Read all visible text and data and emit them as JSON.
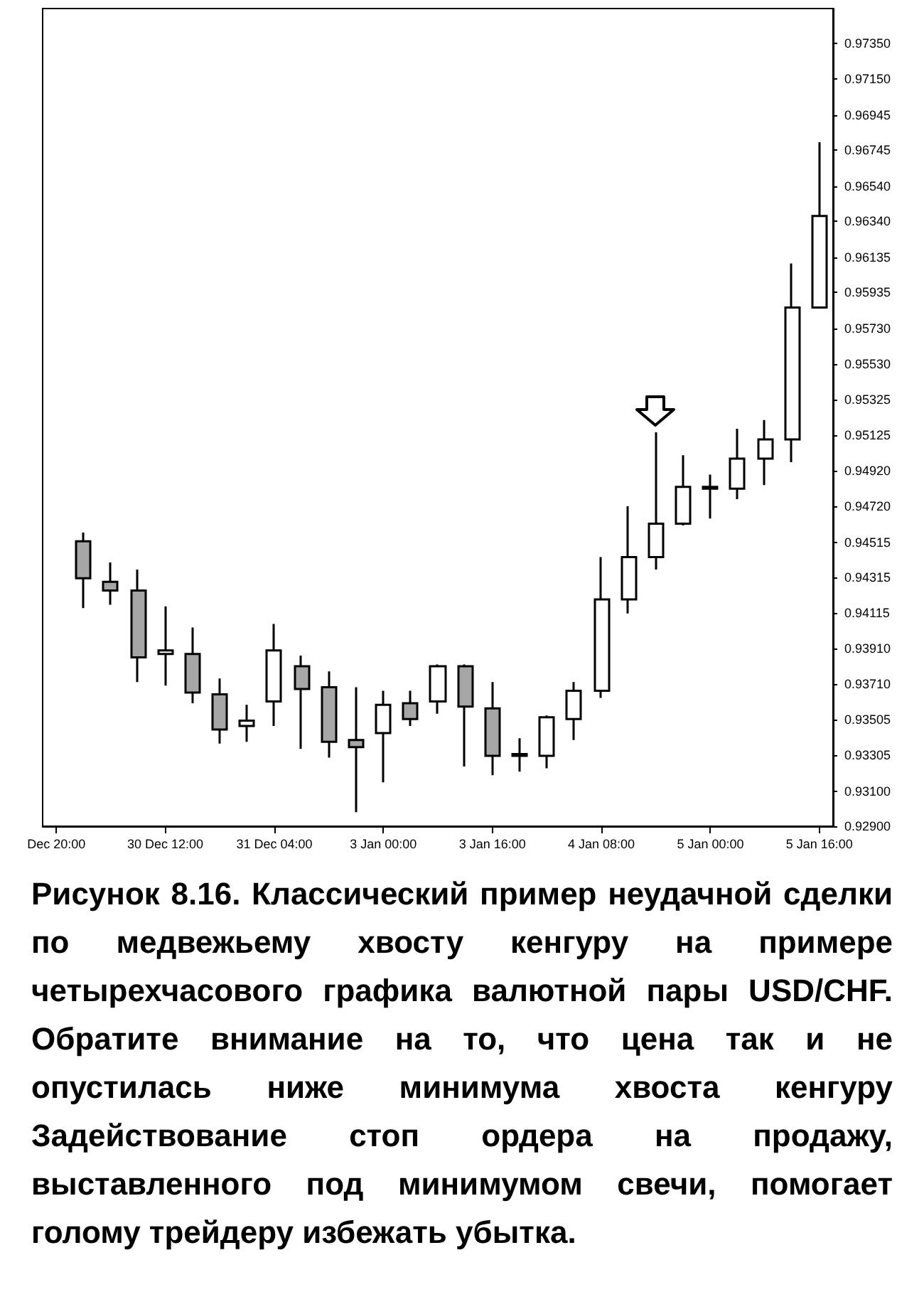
{
  "chart_data": {
    "type": "candlestick",
    "categories": [
      "Dec 20:00",
      null,
      null,
      null,
      "30 Dec 12:00",
      null,
      null,
      null,
      "31 Dec 04:00",
      null,
      null,
      null,
      "3 Jan 00:00",
      null,
      null,
      null,
      "3 Jan 16:00",
      null,
      null,
      null,
      "4 Jan 08:00",
      null,
      null,
      null,
      "5 Jan 00:00",
      null,
      null,
      null,
      "5 Jan 16:00"
    ],
    "ohlc": [
      null,
      [
        0.9452,
        0.9457,
        0.9414,
        0.9431
      ],
      [
        0.9429,
        0.944,
        0.9416,
        0.9424
      ],
      [
        0.9424,
        0.9436,
        0.9372,
        0.9386
      ],
      [
        0.9388,
        0.9415,
        0.937,
        0.939
      ],
      [
        0.9388,
        0.9403,
        0.936,
        0.9366
      ],
      [
        0.9365,
        0.9374,
        0.9337,
        0.9345
      ],
      [
        0.9347,
        0.9359,
        0.9338,
        0.935
      ],
      [
        0.9361,
        0.9405,
        0.9347,
        0.939
      ],
      [
        0.9381,
        0.9387,
        0.9334,
        0.9368
      ],
      [
        0.9369,
        0.9378,
        0.9329,
        0.9338
      ],
      [
        0.9339,
        0.9369,
        0.9298,
        0.9335
      ],
      [
        0.9343,
        0.9367,
        0.9315,
        0.9359
      ],
      [
        0.936,
        0.9367,
        0.9347,
        0.9351
      ],
      [
        0.9361,
        0.9382,
        0.9354,
        0.9381
      ],
      [
        0.9381,
        0.9382,
        0.9324,
        0.9358
      ],
      [
        0.9357,
        0.9372,
        0.9319,
        0.933
      ],
      [
        0.933,
        0.934,
        0.9321,
        0.9331
      ],
      [
        0.933,
        0.9353,
        0.9323,
        0.9352
      ],
      [
        0.9351,
        0.9372,
        0.9339,
        0.9367
      ],
      [
        0.9367,
        0.9443,
        0.9363,
        0.9419
      ],
      [
        0.9419,
        0.9472,
        0.9411,
        0.9443
      ],
      [
        0.9443,
        0.9514,
        0.9436,
        0.9462
      ],
      [
        0.9462,
        0.9501,
        0.9461,
        0.9483
      ],
      [
        0.9482,
        0.949,
        0.9465,
        0.9483
      ],
      [
        0.9482,
        0.9516,
        0.9476,
        0.9499
      ],
      [
        0.9499,
        0.9521,
        0.9484,
        0.951
      ],
      [
        0.951,
        0.961,
        0.9497,
        0.9585
      ],
      [
        0.9585,
        0.9679,
        0.9585,
        0.9637
      ]
    ],
    "colors": [
      null,
      "#a6a6a6",
      "#a6a6a6",
      "#a6a6a6",
      "#ffffff",
      "#a6a6a6",
      "#a6a6a6",
      "#ffffff",
      "#ffffff",
      "#a6a6a6",
      "#a6a6a6",
      "#a6a6a6",
      "#ffffff",
      "#a6a6a6",
      "#ffffff",
      "#a6a6a6",
      "#a6a6a6",
      "#ffffff",
      "#ffffff",
      "#ffffff",
      "#ffffff",
      "#ffffff",
      "#ffffff",
      "#ffffff",
      "#ffffff",
      "#ffffff",
      "#ffffff",
      "#ffffff",
      "#ffffff"
    ],
    "ylim": [
      0.929,
      0.9755
    ],
    "yticks": [
      {
        "value": 0.929,
        "label": "0.92900"
      },
      {
        "value": 0.931,
        "label": "0.93100"
      },
      {
        "value": 0.93305,
        "label": "0.93305"
      },
      {
        "value": 0.93505,
        "label": "0.93505"
      },
      {
        "value": 0.9371,
        "label": "0.93710"
      },
      {
        "value": 0.9391,
        "label": "0.93910"
      },
      {
        "value": 0.94115,
        "label": "0.94115"
      },
      {
        "value": 0.94315,
        "label": "0.94315"
      },
      {
        "value": 0.94515,
        "label": "0.94515"
      },
      {
        "value": 0.9472,
        "label": "0.94720"
      },
      {
        "value": 0.9492,
        "label": "0.94920"
      },
      {
        "value": 0.95125,
        "label": "0.95125"
      },
      {
        "value": 0.95325,
        "label": "0.95325"
      },
      {
        "value": 0.9553,
        "label": "0.95530"
      },
      {
        "value": 0.9573,
        "label": "0.95730"
      },
      {
        "value": 0.95935,
        "label": "0.95935"
      },
      {
        "value": 0.96135,
        "label": "0.96135"
      },
      {
        "value": 0.9634,
        "label": "0.96340"
      },
      {
        "value": 0.9654,
        "label": "0.96540"
      },
      {
        "value": 0.96745,
        "label": "0.96745"
      },
      {
        "value": 0.96945,
        "label": "0.96945"
      },
      {
        "value": 0.9715,
        "label": "0.97150"
      },
      {
        "value": 0.9735,
        "label": "0.97350"
      }
    ],
    "grid": false,
    "annotations": [
      "Рисунок 8.16. Классический пример неудачной сделки по медвежьему хвосту кенгуру на примере четырехчасового графика валютной пары USD/CHF. Обратите внимание на то, что цена так и не опустилась ниже минимума хвоста кенгуру Задействование стоп ордера на продажу, выставленного под минимумом свечи, помогает голому трейдеру избежать убытка."
    ]
  }
}
